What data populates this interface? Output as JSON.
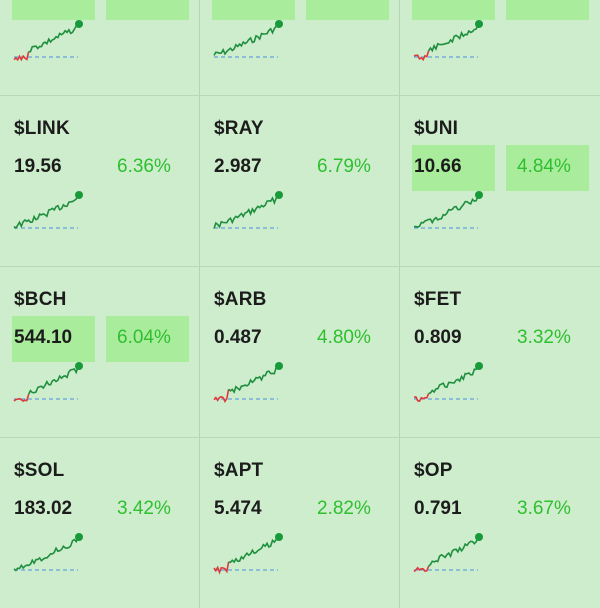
{
  "tiles": [
    {
      "ticker": "",
      "price": "",
      "change": "",
      "highlight": true,
      "spark": {
        "red_prefix": true,
        "seed": 3,
        "hover_end": true
      }
    },
    {
      "ticker": "",
      "price": "",
      "change": "",
      "highlight": true,
      "spark": {
        "red_prefix": false,
        "seed": 7,
        "hover_end": false
      }
    },
    {
      "ticker": "",
      "price": "",
      "change": "",
      "highlight": true,
      "spark": {
        "red_prefix": true,
        "seed": 11,
        "hover_end": false
      }
    },
    {
      "ticker": "$LINK",
      "price": "19.56",
      "change": "6.36%",
      "highlight": false,
      "spark": {
        "red_prefix": false,
        "seed": 13,
        "hover_end": false
      }
    },
    {
      "ticker": "$RAY",
      "price": "2.987",
      "change": "6.79%",
      "highlight": false,
      "spark": {
        "red_prefix": false,
        "seed": 17,
        "hover_end": false
      }
    },
    {
      "ticker": "$UNI",
      "price": "10.66",
      "change": "4.84%",
      "highlight": true,
      "spark": {
        "red_prefix": false,
        "seed": 19,
        "hover_end": false
      }
    },
    {
      "ticker": "$BCH",
      "price": "544.10",
      "change": "6.04%",
      "highlight": true,
      "spark": {
        "red_prefix": true,
        "seed": 23,
        "hover_end": false
      }
    },
    {
      "ticker": "$ARB",
      "price": "0.487",
      "change": "4.80%",
      "highlight": false,
      "spark": {
        "red_prefix": true,
        "seed": 29,
        "hover_end": false
      }
    },
    {
      "ticker": "$FET",
      "price": "0.809",
      "change": "3.32%",
      "highlight": false,
      "spark": {
        "red_prefix": true,
        "seed": 31,
        "hover_end": false
      }
    },
    {
      "ticker": "$SOL",
      "price": "183.02",
      "change": "3.42%",
      "highlight": false,
      "spark": {
        "red_prefix": false,
        "seed": 37,
        "hover_end": false
      }
    },
    {
      "ticker": "$APT",
      "price": "5.474",
      "change": "2.82%",
      "highlight": false,
      "spark": {
        "red_prefix": true,
        "seed": 41,
        "hover_end": false
      }
    },
    {
      "ticker": "$OP",
      "price": "0.791",
      "change": "3.67%",
      "highlight": false,
      "spark": {
        "red_prefix": true,
        "seed": 43,
        "hover_end": false
      }
    }
  ],
  "colors": {
    "up": "#2fbf2f",
    "line_up": "#1f8f3f",
    "line_down": "#e0393b",
    "baseline": "#4a90e2",
    "dot": "#169a3a"
  }
}
